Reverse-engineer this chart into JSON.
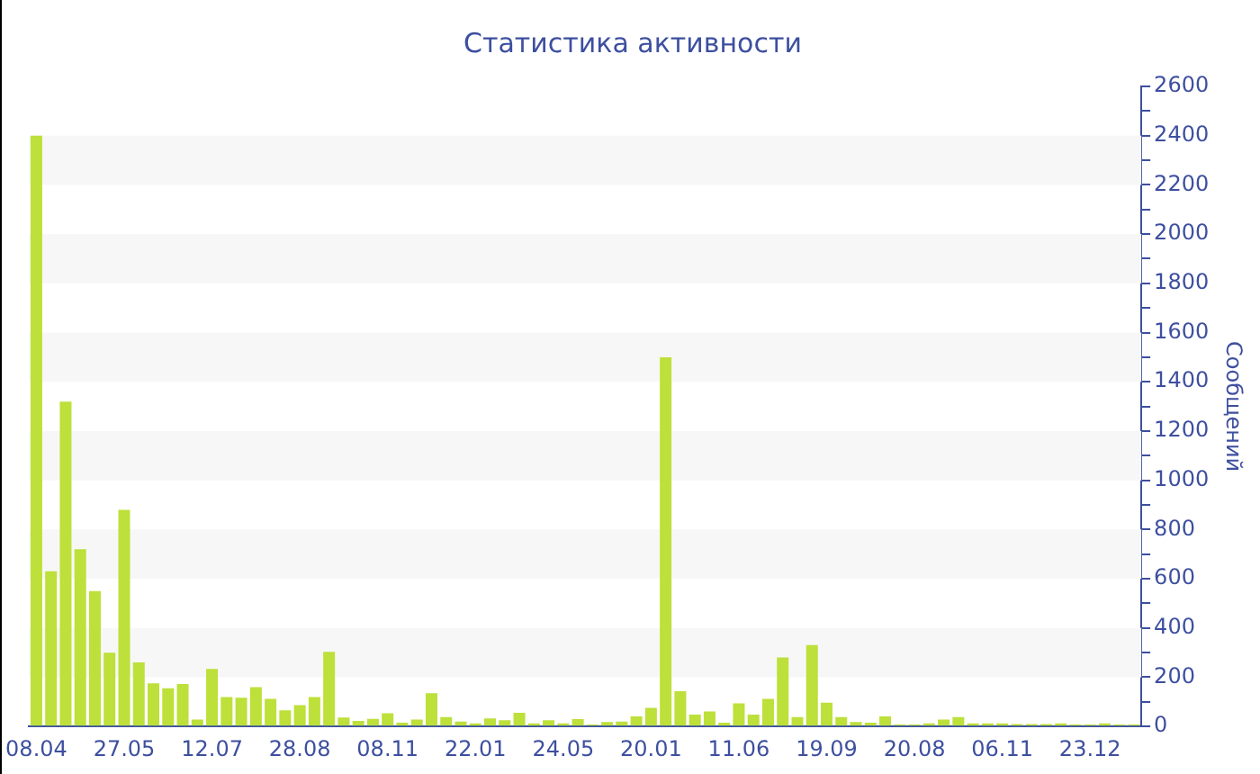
{
  "chart_data": {
    "type": "bar",
    "title": "Статистика активности",
    "ylabel": "Сообщений",
    "categories": [
      "08.04",
      null,
      null,
      null,
      null,
      null,
      "27.05",
      null,
      null,
      null,
      null,
      null,
      "12.07",
      null,
      null,
      null,
      null,
      null,
      "28.08",
      null,
      null,
      null,
      null,
      null,
      "08.11",
      null,
      null,
      null,
      null,
      null,
      "22.01",
      null,
      null,
      null,
      null,
      null,
      "24.05",
      null,
      null,
      null,
      null,
      null,
      "20.01",
      null,
      null,
      null,
      null,
      null,
      "11.06",
      null,
      null,
      null,
      null,
      null,
      "19.09",
      null,
      null,
      null,
      null,
      null,
      "20.08",
      null,
      null,
      null,
      null,
      null,
      "06.11",
      null,
      null,
      null,
      null,
      null,
      "23.12",
      null,
      null,
      null
    ],
    "color": "#bde03a",
    "values": [
      2400,
      630,
      1320,
      720,
      550,
      300,
      880,
      260,
      175,
      155,
      173,
      28,
      234,
      120,
      117,
      160,
      112,
      66,
      87,
      120,
      303,
      36,
      23,
      31,
      54,
      15,
      28,
      135,
      38,
      20,
      13,
      33,
      25,
      56,
      13,
      25,
      13,
      30,
      8,
      18,
      20,
      41,
      76,
      1500,
      143,
      48,
      61,
      15,
      94,
      48,
      112,
      280,
      38,
      331,
      97,
      38,
      18,
      15,
      41,
      8,
      8,
      13,
      28,
      38,
      13,
      13,
      13,
      10,
      10,
      10,
      13,
      8,
      8,
      13,
      8,
      8
    ],
    "ylim": [
      0,
      2600
    ],
    "yticks": [
      0,
      {
        "value": 100,
        "label": null
      },
      200,
      {
        "value": 300,
        "label": null
      },
      400,
      {
        "value": 500,
        "label": null
      },
      600,
      {
        "value": 700,
        "label": null
      },
      800,
      {
        "value": 900,
        "label": null
      },
      1000,
      {
        "value": 1100,
        "label": null
      },
      1200,
      {
        "value": 1300,
        "label": null
      },
      1400,
      {
        "value": 1500,
        "label": null
      },
      1600,
      {
        "value": 1700,
        "label": null
      },
      1800,
      {
        "value": 1900,
        "label": null
      },
      2000,
      {
        "value": 2100,
        "label": null
      },
      2200,
      {
        "value": 2300,
        "label": null
      },
      2400,
      {
        "value": 2500,
        "label": null
      },
      2600
    ],
    "bands": [
      {
        "axis": "y",
        "from": 200,
        "to": 400,
        "color": "#f7f7f7"
      },
      {
        "axis": "y",
        "from": 600,
        "to": 800,
        "color": "#f7f7f7"
      },
      {
        "axis": "y",
        "from": 1000,
        "to": 1200,
        "color": "#f7f7f7"
      },
      {
        "axis": "y",
        "from": 1400,
        "to": 1600,
        "color": "#f7f7f7"
      },
      {
        "axis": "y",
        "from": 1800,
        "to": 2000,
        "color": "#f7f7f7"
      },
      {
        "axis": "y",
        "from": 2200,
        "to": 2400,
        "color": "#f7f7f7"
      }
    ],
    "legend": false
  }
}
